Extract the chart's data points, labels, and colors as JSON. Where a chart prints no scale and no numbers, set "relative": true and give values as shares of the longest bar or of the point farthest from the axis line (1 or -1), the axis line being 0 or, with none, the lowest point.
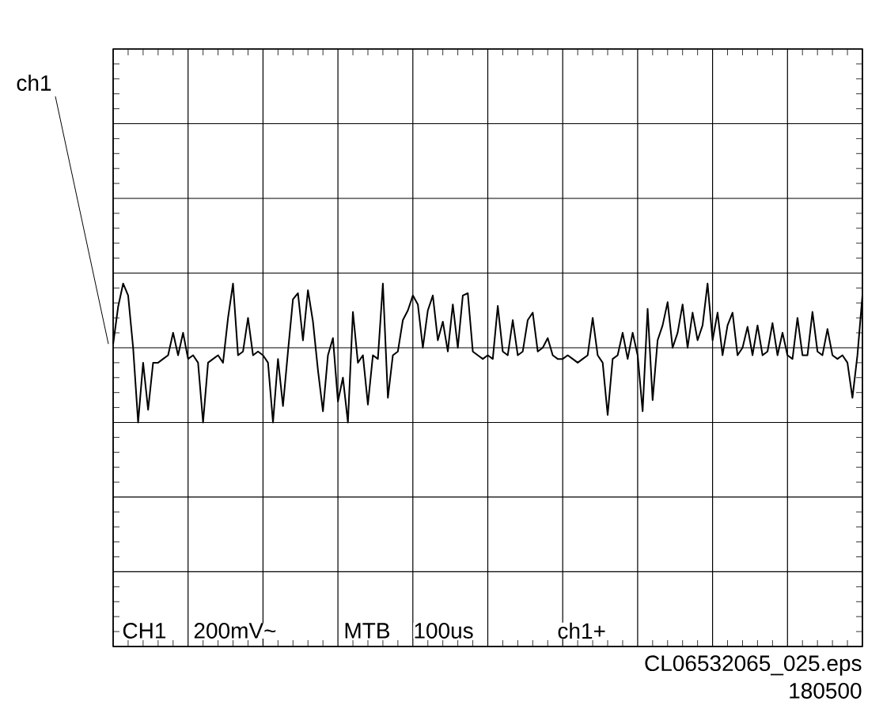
{
  "chart_data": {
    "type": "line",
    "relative": true,
    "grid": true,
    "categories": [
      null,
      null,
      null,
      null,
      null,
      null,
      null,
      null,
      null,
      null,
      null,
      null,
      null,
      null,
      null,
      null,
      null,
      null,
      null,
      null,
      null,
      null,
      null,
      null,
      null,
      null,
      null,
      null,
      null,
      null,
      null,
      null,
      null,
      null,
      null,
      null,
      null,
      null,
      null,
      null,
      null,
      null,
      null,
      null,
      null,
      null,
      null,
      null,
      null,
      null,
      null,
      null,
      null,
      null,
      null,
      null,
      null,
      null,
      null,
      null,
      null,
      null,
      null,
      null,
      null,
      null,
      null,
      null,
      null,
      null,
      null,
      null,
      null,
      null,
      null,
      null,
      null,
      null,
      null,
      null,
      null,
      null,
      null,
      null,
      null,
      null,
      null,
      null,
      null,
      null,
      null,
      null,
      null,
      null,
      null,
      null,
      null,
      null,
      null,
      null,
      null,
      null,
      null,
      null,
      null,
      null,
      null,
      null,
      null,
      null,
      null,
      null,
      null,
      null,
      null,
      null,
      null,
      null,
      null,
      null,
      null,
      null,
      null,
      null,
      null,
      null,
      null,
      null,
      null,
      null,
      null,
      null,
      null,
      null,
      null,
      null,
      null,
      null,
      null,
      null,
      null,
      null,
      null,
      null,
      null,
      null,
      null,
      null,
      null,
      null,
      null
    ],
    "series": [
      {
        "name": "ch1",
        "color": "#000000",
        "values": [
          0.05,
          0.55,
          0.86,
          0.7,
          0.0,
          -1.0,
          -0.2,
          -0.83,
          -0.2,
          -0.2,
          -0.15,
          -0.1,
          0.2,
          -0.1,
          0.2,
          -0.15,
          -0.1,
          -0.2,
          -1.0,
          -0.2,
          -0.15,
          -0.1,
          -0.2,
          0.4,
          0.86,
          -0.1,
          -0.05,
          0.4,
          -0.1,
          -0.05,
          -0.1,
          -0.2,
          -1.0,
          -0.15,
          -0.78,
          -0.05,
          0.65,
          0.73,
          0.1,
          0.77,
          0.35,
          -0.3,
          -0.85,
          -0.1,
          0.13,
          -0.72,
          -0.4,
          -1.0,
          0.48,
          -0.2,
          -0.1,
          -0.76,
          -0.1,
          -0.15,
          0.86,
          -0.67,
          -0.1,
          -0.05,
          0.37,
          0.5,
          0.7,
          0.58,
          0.0,
          0.5,
          0.7,
          0.1,
          0.35,
          -0.05,
          0.58,
          0.0,
          0.7,
          0.73,
          -0.05,
          -0.1,
          -0.15,
          -0.1,
          -0.15,
          0.56,
          -0.05,
          -0.1,
          0.37,
          -0.1,
          -0.05,
          0.37,
          0.47,
          -0.05,
          0.0,
          0.13,
          -0.1,
          -0.15,
          -0.15,
          -0.1,
          -0.15,
          -0.2,
          -0.15,
          -0.1,
          0.4,
          -0.1,
          -0.2,
          -0.9,
          -0.15,
          -0.1,
          0.2,
          -0.15,
          0.2,
          -0.1,
          -0.85,
          0.52,
          -0.7,
          0.1,
          0.3,
          0.61,
          0.0,
          0.2,
          0.58,
          0.0,
          0.47,
          0.1,
          0.3,
          0.86,
          0.1,
          0.47,
          -0.1,
          0.3,
          0.47,
          -0.1,
          0.0,
          0.28,
          -0.1,
          0.3,
          -0.1,
          -0.05,
          0.33,
          -0.1,
          0.2,
          -0.1,
          -0.15,
          0.4,
          -0.1,
          -0.1,
          0.48,
          -0.05,
          -0.1,
          0.25,
          -0.1,
          -0.15,
          -0.1,
          -0.2,
          -0.67,
          -0.1,
          0.7
        ]
      }
    ],
    "annotations": [
      "CH1",
      "200mV~",
      "MTB",
      "100us",
      "ch1+",
      "CL06532065_025.eps",
      "180500"
    ]
  }
}
